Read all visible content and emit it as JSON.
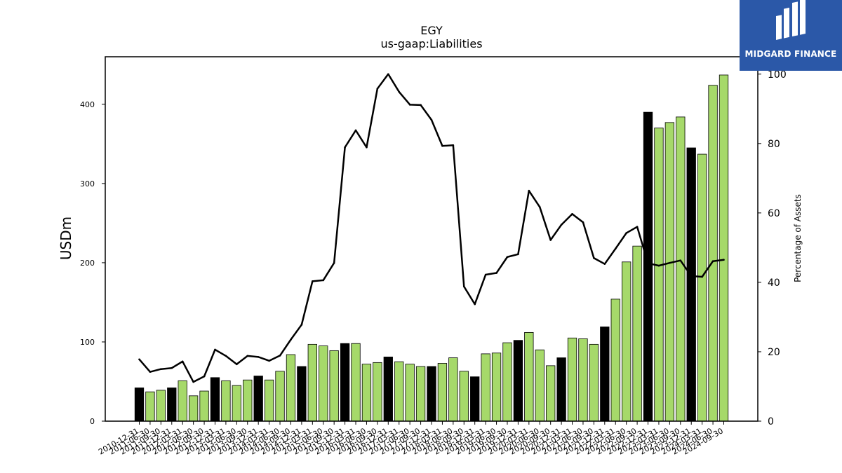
{
  "chart_data": {
    "type": "bar",
    "title": "EGY",
    "subtitle": "us-gaap:Liabilities",
    "ylabel": "USDm",
    "y2label": "Percentage of Assets",
    "ylim": [
      0,
      460
    ],
    "y2lim": [
      0,
      105
    ],
    "yticks": [
      0,
      100,
      200,
      300,
      400
    ],
    "y2ticks": [
      0,
      20,
      40,
      60,
      80,
      100
    ],
    "categories": [
      "2010-12-31",
      "2011-06-30",
      "2011-09-30",
      "2011-12-31",
      "2012-03-31",
      "2012-06-30",
      "2012-09-30",
      "2012-12-31",
      "2013-03-31",
      "2013-06-30",
      "2013-09-30",
      "2013-12-31",
      "2014-03-31",
      "2014-06-30",
      "2014-09-30",
      "2014-12-31",
      "2015-03-31",
      "2015-06-30",
      "2015-09-30",
      "2015-12-31",
      "2016-03-31",
      "2016-06-30",
      "2016-09-30",
      "2016-12-31",
      "2017-03-31",
      "2017-06-30",
      "2017-09-30",
      "2017-12-31",
      "2018-03-31",
      "2018-06-30",
      "2018-09-30",
      "2018-12-31",
      "2019-03-31",
      "2019-06-30",
      "2019-09-30",
      "2019-12-31",
      "2020-03-31",
      "2020-06-30",
      "2020-09-30",
      "2020-12-31",
      "2021-03-31",
      "2021-06-30",
      "2021-09-30",
      "2021-12-31",
      "2022-03-31",
      "2022-06-30",
      "2022-09-30",
      "2022-12-31",
      "2023-03-31",
      "2023-06-30",
      "2023-09-30",
      "2023-12-31",
      "2024-03-31",
      "2024-06-30",
      "2024-09-30"
    ],
    "series": [
      {
        "name": "Liabilities",
        "kind": "bar",
        "axis": "left",
        "values": [
          42,
          37,
          39,
          42,
          51,
          32,
          38,
          55,
          51,
          45,
          52,
          57,
          52,
          63,
          84,
          69,
          97,
          95,
          89,
          98,
          98,
          72,
          74,
          81,
          75,
          72,
          69,
          69,
          73,
          80,
          63,
          56,
          85,
          86,
          99,
          102,
          112,
          90,
          70,
          80,
          105,
          104,
          97,
          119,
          154,
          201,
          221,
          390,
          370,
          377,
          384,
          345,
          337,
          424,
          437
        ],
        "colors": [
          "#000000",
          "#a6d96a",
          "#a6d96a",
          "#000000",
          "#a6d96a",
          "#a6d96a",
          "#a6d96a",
          "#000000",
          "#a6d96a",
          "#a6d96a",
          "#a6d96a",
          "#000000",
          "#a6d96a",
          "#a6d96a",
          "#a6d96a",
          "#000000",
          "#a6d96a",
          "#a6d96a",
          "#a6d96a",
          "#000000",
          "#a6d96a",
          "#a6d96a",
          "#a6d96a",
          "#000000",
          "#a6d96a",
          "#a6d96a",
          "#a6d96a",
          "#000000",
          "#a6d96a",
          "#a6d96a",
          "#a6d96a",
          "#000000",
          "#a6d96a",
          "#a6d96a",
          "#a6d96a",
          "#000000",
          "#a6d96a",
          "#a6d96a",
          "#a6d96a",
          "#000000",
          "#a6d96a",
          "#a6d96a",
          "#a6d96a",
          "#000000",
          "#a6d96a",
          "#a6d96a",
          "#a6d96a",
          "#000000",
          "#a6d96a",
          "#a6d96a",
          "#a6d96a",
          "#000000",
          "#a6d96a",
          "#a6d96a",
          "#a6d96a"
        ]
      },
      {
        "name": "Percentage of Assets",
        "kind": "line",
        "axis": "right",
        "color": "#000000",
        "values": [
          17.8,
          14.2,
          15.0,
          15.3,
          17.2,
          11.3,
          12.9,
          20.6,
          18.8,
          16.4,
          18.8,
          18.5,
          17.4,
          18.9,
          23.5,
          27.8,
          40.3,
          40.6,
          45.6,
          78.9,
          83.8,
          78.9,
          95.8,
          100.0,
          94.9,
          91.2,
          91.1,
          86.8,
          79.3,
          79.5,
          38.8,
          33.7,
          42.2,
          42.7,
          47.3,
          48.1,
          66.4,
          61.7,
          52.2,
          56.6,
          59.7,
          57.3,
          47.0,
          45.3,
          49.7,
          54.2,
          56.0,
          45.5,
          44.8,
          45.6,
          46.3,
          41.8,
          41.6,
          46.1,
          46.5
        ]
      }
    ],
    "grid": false
  },
  "logo": {
    "text": "MIDGARD FINANCE"
  }
}
